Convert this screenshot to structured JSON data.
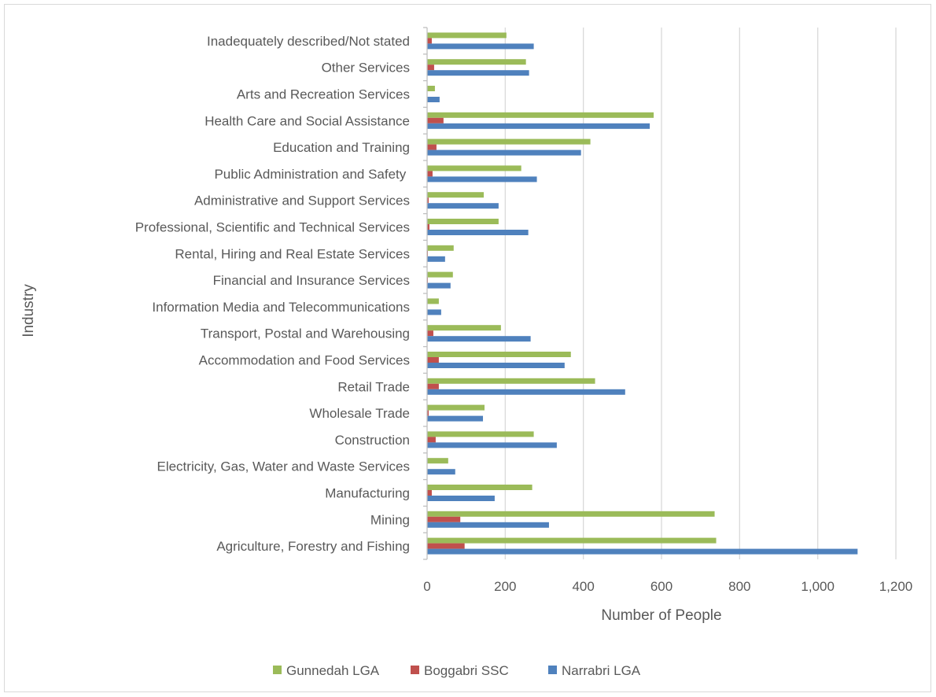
{
  "chart_data": {
    "type": "bar",
    "orientation": "horizontal",
    "title": "",
    "xlabel": "Number of People",
    "ylabel": "Industry",
    "xlim": [
      0,
      1200
    ],
    "xticks": [
      "0",
      "200",
      "400",
      "600",
      "800",
      "1,000",
      "1,200"
    ],
    "grid": true,
    "legend_position": "bottom",
    "categories": [
      "Inadequately described/Not stated",
      "Other Services",
      "Arts and Recreation Services",
      "Health Care and Social Assistance",
      "Education and Training",
      "Public Administration and Safety ",
      "Administrative and Support Services",
      "Professional, Scientific and Technical Services",
      "Rental, Hiring and Real Estate Services",
      "Financial and Insurance Services",
      "Information Media and Telecommunications",
      "Transport, Postal and Warehousing",
      "Accommodation and Food Services",
      "Retail Trade",
      "Wholesale Trade",
      "Construction",
      "Electricity, Gas, Water and Waste Services",
      "Manufacturing",
      "Mining",
      "Agriculture, Forestry and Fishing"
    ],
    "series": [
      {
        "name": "Gunnedah LGA",
        "color": "#9BBB59",
        "values": [
          203,
          253,
          20,
          580,
          418,
          241,
          145,
          183,
          68,
          66,
          30,
          189,
          368,
          430,
          147,
          273,
          54,
          269,
          736,
          740
        ]
      },
      {
        "name": "Boggabri SSC",
        "color": "#C0504D",
        "values": [
          12,
          18,
          1,
          42,
          24,
          14,
          4,
          6,
          2,
          2,
          0,
          16,
          30,
          30,
          4,
          22,
          0,
          12,
          85,
          96
        ]
      },
      {
        "name": "Narrabri LGA",
        "color": "#4F81BD",
        "values": [
          273,
          261,
          32,
          570,
          394,
          281,
          183,
          259,
          46,
          60,
          36,
          265,
          352,
          507,
          143,
          332,
          72,
          173,
          312,
          1102
        ]
      }
    ]
  }
}
